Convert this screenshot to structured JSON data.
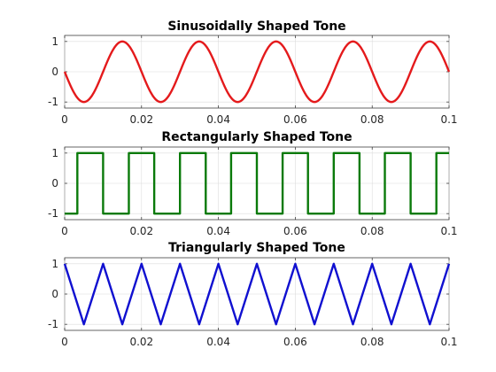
{
  "chart_data": [
    {
      "type": "line",
      "title": "Sinusoidally Shaped Tone",
      "xlim": [
        0,
        0.1
      ],
      "ylim": [
        -1.2,
        1.2
      ],
      "grid": true,
      "xticks": [
        "0",
        "0.02",
        "0.04",
        "0.06",
        "0.08",
        "0.1"
      ],
      "yticks": [
        "-1",
        "0",
        "1"
      ],
      "series": [
        {
          "color": "#e41a1c",
          "x": [
            0,
            0.0025,
            0.005,
            0.0075,
            0.01,
            0.0125,
            0.015,
            0.0175,
            0.02,
            0.0225,
            0.025,
            0.0275,
            0.03,
            0.0325,
            0.035,
            0.0375,
            0.04,
            0.0425,
            0.045,
            0.0475,
            0.05,
            0.0525,
            0.055,
            0.0575,
            0.06,
            0.0625,
            0.065,
            0.0675,
            0.07,
            0.0725,
            0.075,
            0.0775,
            0.08,
            0.0825,
            0.085,
            0.0875,
            0.09,
            0.0925,
            0.095,
            0.0975,
            0.1
          ],
          "y": [
            0,
            -0.707,
            -1,
            -0.707,
            0,
            0.707,
            1,
            0.707,
            0,
            -0.707,
            -1,
            -0.707,
            0,
            0.707,
            1,
            0.707,
            0,
            -0.707,
            -1,
            -0.707,
            0,
            0.707,
            1,
            0.707,
            0,
            -0.707,
            -1,
            -0.707,
            0,
            0.707,
            1,
            0.707,
            0,
            -0.707,
            -1,
            -0.707,
            0,
            0.707,
            1,
            0.707,
            0
          ]
        }
      ]
    },
    {
      "type": "line",
      "title": "Rectangularly Shaped Tone",
      "xlim": [
        0,
        0.1
      ],
      "ylim": [
        -1.2,
        1.2
      ],
      "grid": true,
      "xticks": [
        "0",
        "0.02",
        "0.04",
        "0.06",
        "0.08",
        "0.1"
      ],
      "yticks": [
        "-1",
        "0",
        "1"
      ],
      "series": [
        {
          "color": "#0a7a0a",
          "x": [
            0,
            0.0033,
            0.0033,
            0.01,
            0.01,
            0.0167,
            0.0167,
            0.0233,
            0.0233,
            0.03,
            0.03,
            0.0367,
            0.0367,
            0.0433,
            0.0433,
            0.05,
            0.05,
            0.0567,
            0.0567,
            0.0633,
            0.0633,
            0.07,
            0.07,
            0.0767,
            0.0767,
            0.0833,
            0.0833,
            0.09,
            0.09,
            0.0967,
            0.0967,
            0.1
          ],
          "y": [
            -1,
            -1,
            1,
            1,
            -1,
            -1,
            1,
            1,
            -1,
            -1,
            1,
            1,
            -1,
            -1,
            1,
            1,
            -1,
            -1,
            1,
            1,
            -1,
            -1,
            1,
            1,
            -1,
            -1,
            1,
            1,
            -1,
            -1,
            1,
            1
          ]
        }
      ]
    },
    {
      "type": "line",
      "title": "Triangularly Shaped Tone",
      "xlim": [
        0,
        0.1
      ],
      "ylim": [
        -1.2,
        1.2
      ],
      "grid": true,
      "xticks": [
        "0",
        "0.02",
        "0.04",
        "0.06",
        "0.08",
        "0.1"
      ],
      "yticks": [
        "-1",
        "0",
        "1"
      ],
      "series": [
        {
          "color": "#1010d0",
          "x": [
            0,
            0.005,
            0.01,
            0.015,
            0.02,
            0.025,
            0.03,
            0.035,
            0.04,
            0.045,
            0.05,
            0.055,
            0.06,
            0.065,
            0.07,
            0.075,
            0.08,
            0.085,
            0.09,
            0.095,
            0.1
          ],
          "y": [
            1,
            -1,
            1,
            -1,
            1,
            -1,
            1,
            -1,
            1,
            -1,
            1,
            -1,
            1,
            -1,
            1,
            -1,
            1,
            -1,
            1,
            -1,
            1
          ]
        }
      ]
    }
  ]
}
